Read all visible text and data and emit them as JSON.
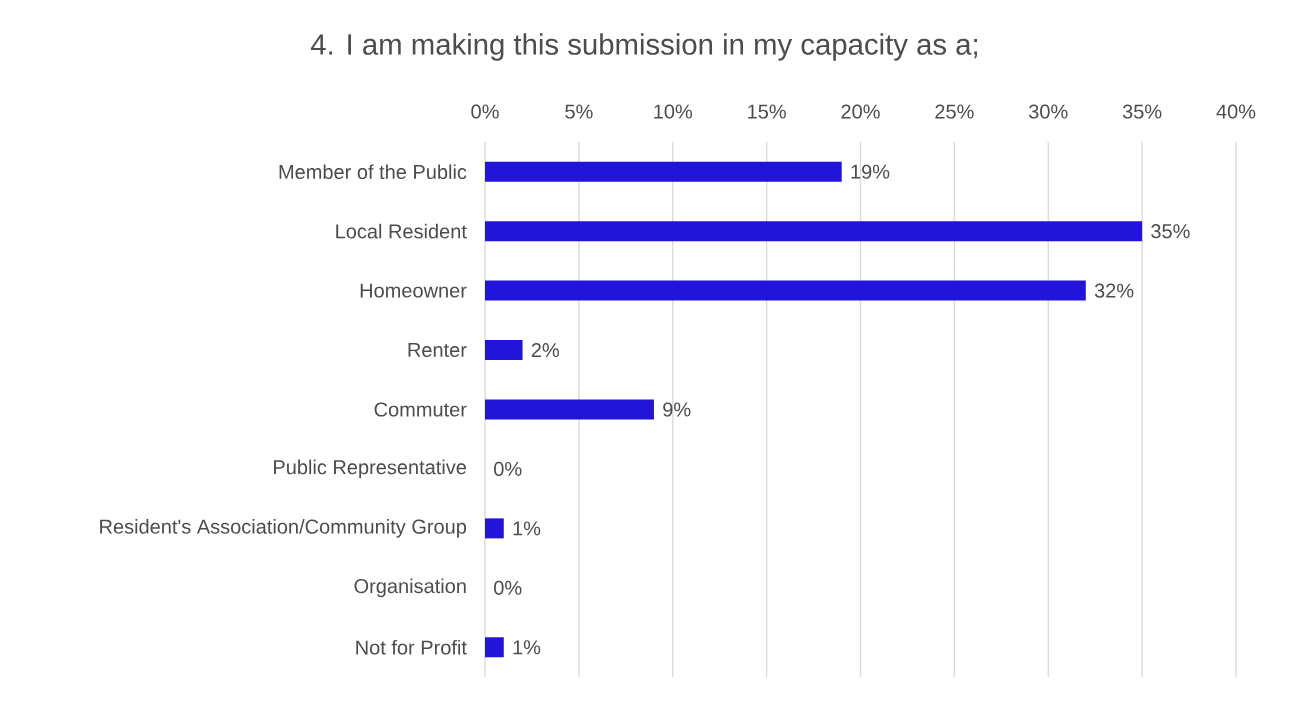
{
  "chart_data": {
    "type": "bar",
    "orientation": "horizontal",
    "title": "4. I am making this submission in my capacity as a;",
    "categories": [
      "Member of the Public",
      "Local Resident",
      "Homeowner",
      "Renter",
      "Commuter",
      "Public Representative",
      "Resident's Association/Community Group",
      "Organisation",
      "Not for Profit"
    ],
    "values": [
      19,
      35,
      32,
      2,
      9,
      0,
      1,
      0,
      1
    ],
    "value_labels": [
      "19%",
      "35%",
      "32%",
      "2%",
      "9%",
      "0%",
      "1%",
      "0%",
      "1%"
    ],
    "color": "#2314d9",
    "xlim": [
      0,
      40
    ],
    "xticks": [
      {
        "value": 0,
        "label": "0%"
      },
      {
        "value": 5,
        "label": "5%"
      },
      {
        "value": 10,
        "label": "10%"
      },
      {
        "value": 15,
        "label": "15%"
      },
      {
        "value": 20,
        "label": "20%"
      },
      {
        "value": 25,
        "label": "25%"
      },
      {
        "value": 30,
        "label": "30%"
      },
      {
        "value": 35,
        "label": "35%"
      },
      {
        "value": 40,
        "label": "40%"
      }
    ],
    "grid": "x"
  }
}
